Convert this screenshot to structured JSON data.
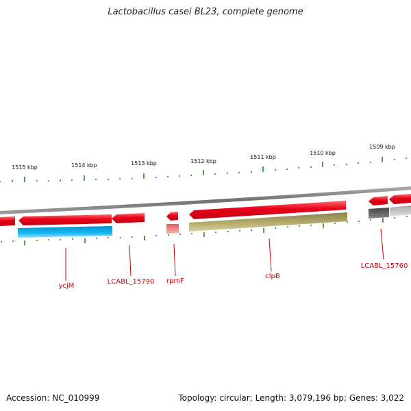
{
  "title": "Lactobacillus casei BL23, complete genome",
  "footer": {
    "accession": "Accession: NC_010999",
    "summary": "Topology: circular; Length: 3,079,196 bp; Genes: 3,022"
  },
  "ruler": {
    "labels": [
      "1515 kbp",
      "1514 kbp",
      "1513 kbp",
      "1512 kbp",
      "1511 kbp",
      "1510 kbp",
      "1509 kbp"
    ]
  },
  "gene_labels": [
    "ycjM",
    "LCABL_15790",
    "rpmF",
    "clpB",
    "LCABL_15760"
  ],
  "colors": {
    "backbone": "#808080",
    "gene_forward": "#e8001a",
    "cds_cyan": "#1ab8f0",
    "cds_olive": "#b0a866",
    "cds_pink": "#f08080",
    "cds_gray": "#666666",
    "cds_light_gray": "#c0c0c0",
    "tick": "#1a7a1a",
    "label": "#cc0000"
  }
}
